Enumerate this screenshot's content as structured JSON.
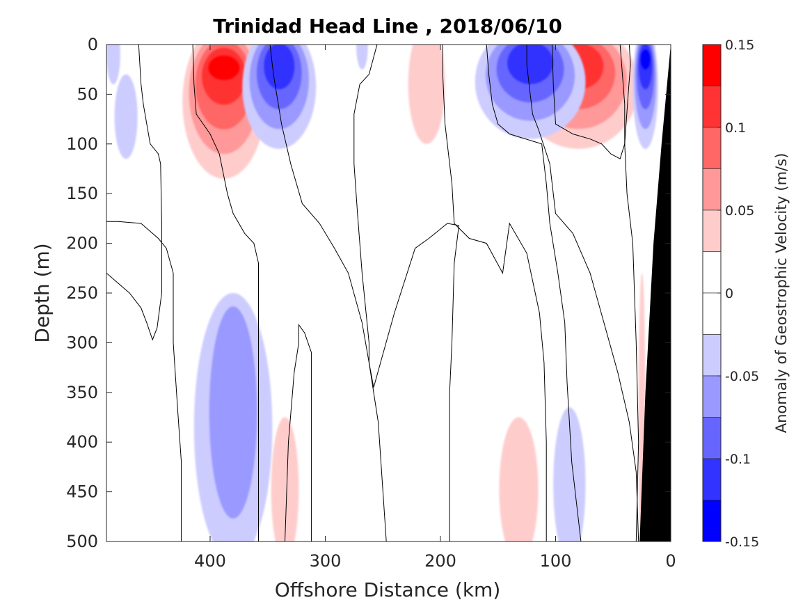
{
  "chart_data": {
    "type": "heatmap",
    "subtype": "filled-contour",
    "title": "Trinidad Head Line , 2018/06/10",
    "xlabel": "Offshore Distance (km)",
    "ylabel": "Depth (m)",
    "colorbar_label": "Anomaly of Geostrophic Velocity (m/s)",
    "xlim": [
      490,
      0
    ],
    "x_reversed": true,
    "ylim": [
      0,
      500
    ],
    "y_reversed": true,
    "xticks": [
      "400",
      "300",
      "200",
      "100",
      "0"
    ],
    "xtick_values": [
      400,
      300,
      200,
      100,
      0
    ],
    "yticks": [
      "0",
      "50",
      "100",
      "150",
      "200",
      "250",
      "300",
      "350",
      "400",
      "450",
      "500"
    ],
    "ytick_values": [
      0,
      50,
      100,
      150,
      200,
      250,
      300,
      350,
      400,
      450,
      500
    ],
    "colorbar": {
      "ticks": [
        "0.15",
        "0.1",
        "0.05",
        "0",
        "-0.05",
        "-0.1",
        "-0.15"
      ],
      "tick_values": [
        0.15,
        0.1,
        0.05,
        0,
        -0.05,
        -0.1,
        -0.15
      ],
      "range": [
        -0.15,
        0.15
      ],
      "levels": [
        {
          "range": [
            0.125,
            0.15
          ],
          "color": "#ff0000"
        },
        {
          "range": [
            0.1,
            0.125
          ],
          "color": "#ff3333"
        },
        {
          "range": [
            0.075,
            0.1
          ],
          "color": "#ff6666"
        },
        {
          "range": [
            0.05,
            0.075
          ],
          "color": "#ff9999"
        },
        {
          "range": [
            0.025,
            0.05
          ],
          "color": "#ffcccc"
        },
        {
          "range": [
            0,
            0.025
          ],
          "color": "#ffffff"
        },
        {
          "range": [
            -0.025,
            0
          ],
          "color": "#ffffff"
        },
        {
          "range": [
            -0.05,
            -0.025
          ],
          "color": "#ccccff"
        },
        {
          "range": [
            -0.075,
            -0.05
          ],
          "color": "#9999ff"
        },
        {
          "range": [
            -0.1,
            -0.075
          ],
          "color": "#6666ff"
        },
        {
          "range": [
            -0.125,
            -0.1
          ],
          "color": "#3333ff"
        },
        {
          "range": [
            -0.15,
            -0.125
          ],
          "color": "#0000ff"
        }
      ]
    },
    "contour_zero_lines": [
      [
        [
          490,
          230
        ],
        [
          470,
          250
        ],
        [
          460,
          265
        ],
        [
          455,
          280
        ],
        [
          450,
          297
        ],
        [
          446,
          285
        ],
        [
          442,
          250
        ],
        [
          442,
          180
        ],
        [
          443,
          120
        ],
        [
          445,
          110
        ],
        [
          452,
          100
        ],
        [
          455,
          80
        ],
        [
          458,
          60
        ],
        [
          460,
          40
        ],
        [
          462,
          0
        ]
      ],
      [
        [
          425,
          500
        ],
        [
          425,
          420
        ],
        [
          428,
          370
        ],
        [
          432,
          300
        ],
        [
          432,
          230
        ],
        [
          438,
          205
        ],
        [
          445,
          195
        ],
        [
          460,
          180
        ],
        [
          480,
          178
        ],
        [
          490,
          178
        ]
      ],
      [
        [
          358,
          500
        ],
        [
          358,
          420
        ],
        [
          358,
          300
        ],
        [
          358,
          220
        ],
        [
          362,
          200
        ],
        [
          370,
          190
        ],
        [
          380,
          170
        ],
        [
          385,
          150
        ],
        [
          392,
          110
        ],
        [
          400,
          90
        ],
        [
          412,
          70
        ],
        [
          414,
          40
        ],
        [
          415,
          0
        ]
      ],
      [
        [
          312,
          500
        ],
        [
          312,
          310
        ],
        [
          318,
          290
        ],
        [
          323,
          282
        ],
        [
          323,
          300
        ],
        [
          327,
          330
        ],
        [
          332,
          400
        ],
        [
          335,
          500
        ]
      ],
      [
        [
          247,
          500
        ],
        [
          254,
          380
        ],
        [
          262,
          320
        ],
        [
          268,
          280
        ],
        [
          280,
          230
        ],
        [
          292,
          205
        ],
        [
          305,
          180
        ],
        [
          320,
          160
        ],
        [
          330,
          120
        ],
        [
          338,
          80
        ],
        [
          345,
          30
        ],
        [
          348,
          0
        ]
      ],
      [
        [
          192,
          500
        ],
        [
          192,
          350
        ],
        [
          190,
          300
        ],
        [
          188,
          220
        ],
        [
          184,
          182
        ],
        [
          194,
          180
        ],
        [
          210,
          195
        ],
        [
          222,
          205
        ],
        [
          240,
          270
        ],
        [
          252,
          320
        ],
        [
          258,
          345
        ],
        [
          262,
          320
        ],
        [
          262,
          300
        ],
        [
          268,
          230
        ],
        [
          272,
          170
        ],
        [
          275,
          120
        ],
        [
          275,
          70
        ],
        [
          270,
          40
        ],
        [
          262,
          30
        ],
        [
          255,
          0
        ]
      ],
      [
        [
          108,
          500
        ],
        [
          108,
          400
        ],
        [
          110,
          320
        ],
        [
          114,
          270
        ],
        [
          125,
          210
        ],
        [
          140,
          180
        ],
        [
          146,
          230
        ],
        [
          160,
          200
        ],
        [
          175,
          195
        ],
        [
          188,
          180
        ],
        [
          190,
          140
        ],
        [
          196,
          80
        ],
        [
          198,
          30
        ],
        [
          198,
          0
        ]
      ],
      [
        [
          28,
          500
        ],
        [
          30,
          430
        ],
        [
          36,
          380
        ],
        [
          46,
          330
        ],
        [
          58,
          280
        ],
        [
          70,
          230
        ],
        [
          85,
          190
        ],
        [
          100,
          170
        ],
        [
          105,
          120
        ],
        [
          115,
          85
        ],
        [
          120,
          70
        ],
        [
          125,
          20
        ],
        [
          125,
          0
        ]
      ],
      [
        [
          78,
          500
        ],
        [
          86,
          420
        ],
        [
          90,
          340
        ],
        [
          92,
          280
        ],
        [
          98,
          230
        ],
        [
          105,
          180
        ],
        [
          108,
          140
        ],
        [
          112,
          100
        ],
        [
          140,
          90
        ],
        [
          150,
          80
        ],
        [
          155,
          60
        ],
        [
          158,
          30
        ],
        [
          160,
          0
        ]
      ],
      [
        [
          36,
          0
        ],
        [
          35,
          20
        ],
        [
          37,
          50
        ],
        [
          40,
          100
        ],
        [
          44,
          115
        ],
        [
          52,
          110
        ],
        [
          60,
          100
        ],
        [
          70,
          95
        ],
        [
          85,
          90
        ],
        [
          100,
          80
        ],
        [
          102,
          40
        ],
        [
          103,
          0
        ]
      ],
      [
        [
          30,
          500
        ],
        [
          28,
          400
        ],
        [
          30,
          300
        ],
        [
          33,
          200
        ],
        [
          38,
          150
        ],
        [
          40,
          100
        ],
        [
          40,
          60
        ],
        [
          42,
          30
        ],
        [
          44,
          0
        ]
      ]
    ],
    "bathymetry_color": "#000000",
    "bathymetry": [
      [
        27,
        500
      ],
      [
        22,
        350
      ],
      [
        15,
        200
      ],
      [
        8,
        100
      ],
      [
        0,
        0
      ]
    ]
  }
}
